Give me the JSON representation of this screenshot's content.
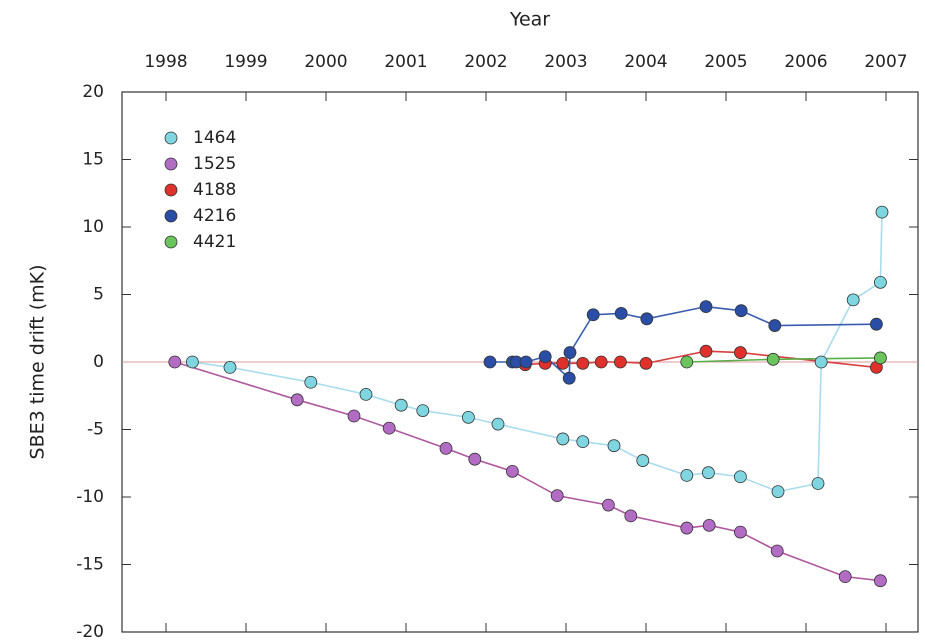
{
  "chart_data": {
    "type": "line",
    "title": "Year",
    "y_label": "SBE3 time drift (mK)",
    "xlim": [
      1997.45,
      2007.4
    ],
    "xticks": [
      1998,
      1999,
      2000,
      2001,
      2002,
      2003,
      2004,
      2005,
      2006,
      2007
    ],
    "ylim": [
      -20,
      20
    ],
    "yticks": [
      -20,
      -15,
      -10,
      -5,
      0,
      5,
      10,
      15,
      20
    ],
    "legend": "upper left",
    "series": [
      {
        "name": "1464",
        "color": "#7fd6e0",
        "line_color": "#a9dcee",
        "x": [
          1998.33,
          1998.8,
          1999.81,
          2000.5,
          2000.94,
          2001.21,
          2001.78,
          2002.15,
          2002.96,
          2003.21,
          2003.6,
          2003.96,
          2004.51,
          2004.78,
          2005.18,
          2005.65,
          2006.15,
          2006.19,
          2006.59,
          2006.93,
          2006.95
        ],
        "values": [
          0,
          -0.4,
          -1.5,
          -2.4,
          -3.2,
          -3.6,
          -4.1,
          -4.6,
          -5.7,
          -5.9,
          -6.2,
          -7.3,
          -8.4,
          -8.2,
          -8.5,
          -9.6,
          -9.0,
          0,
          4.6,
          5.9,
          11.1
        ]
      },
      {
        "name": "1525",
        "color": "#b36cc4",
        "line_color": "#b0589f",
        "x": [
          1998.11,
          1999.64,
          2000.35,
          2000.79,
          2001.5,
          2001.86,
          2002.33,
          2002.89,
          2003.53,
          2003.81,
          2004.51,
          2004.79,
          2005.18,
          2005.64,
          2006.49,
          2006.93
        ],
        "values": [
          0,
          -2.8,
          -4.0,
          -4.9,
          -6.4,
          -7.2,
          -8.1,
          -9.9,
          -10.6,
          -11.4,
          -12.3,
          -12.1,
          -12.6,
          -14.0,
          -15.9,
          -16.2
        ]
      },
      {
        "name": "4188",
        "color": "#e0302c",
        "line_color": "#d84040",
        "x": [
          2002.49,
          2002.74,
          2002.96,
          2003.21,
          2003.44,
          2003.68,
          2004.0,
          2004.75,
          2005.18,
          2006.88
        ],
        "values": [
          -0.2,
          -0.1,
          -0.1,
          -0.1,
          0,
          0,
          -0.1,
          0.8,
          0.7,
          -0.4
        ]
      },
      {
        "name": "4216",
        "color": "#2a4ea6",
        "line_color": "#3a5cb0",
        "x": [
          2002.05,
          2002.33,
          2002.38,
          2002.5,
          2002.74,
          2003.04,
          2003.05,
          2003.34,
          2003.69,
          2004.01,
          2004.75,
          2005.19,
          2005.61,
          2006.88
        ],
        "values": [
          0,
          0,
          0,
          0,
          0.4,
          -1.2,
          0.7,
          3.5,
          3.6,
          3.2,
          4.1,
          3.8,
          2.7,
          2.8
        ]
      },
      {
        "name": "4421",
        "color": "#6cc45c",
        "line_color": "#58b048",
        "x": [
          2004.51,
          2005.59,
          2006.93
        ],
        "values": [
          0,
          0.2,
          0.3
        ]
      }
    ]
  }
}
